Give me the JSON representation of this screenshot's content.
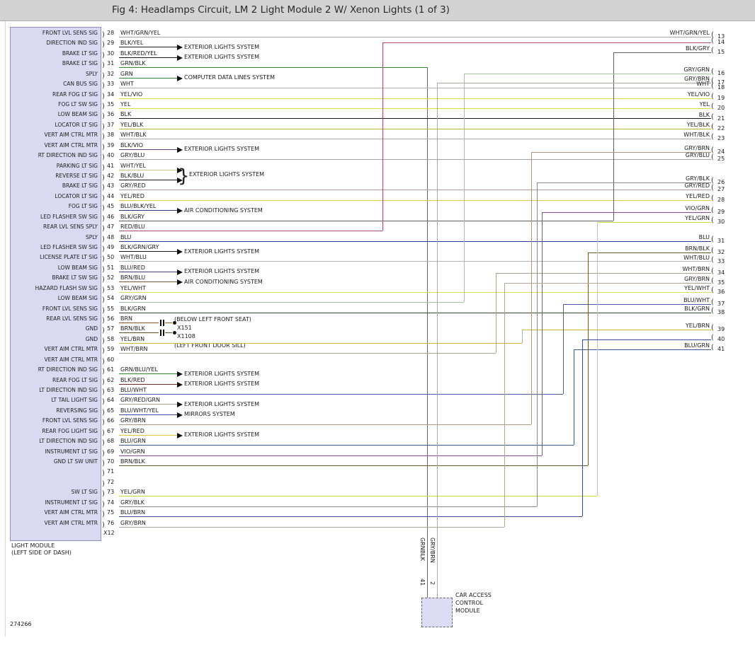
{
  "title": "Fig 4: Headlamps Circuit, LM 2 Light Module 2 W/ Xenon Lights (1 of 3)",
  "doc_number": "274266",
  "left_module": {
    "name_line1": "LIGHT MODULE",
    "name_line2": "(LEFT SIDE OF DASH)",
    "connector_id": "X12",
    "pins": [
      {
        "pin": 28,
        "signal": "FRONT LVL SENS SIG",
        "wire": "WHT/GRN/YEL",
        "color": "#a8a8a8",
        "to": 13
      },
      {
        "pin": 29,
        "signal": "DIRECTION IND SIG",
        "wire": "BLK/YEL",
        "color": "#1a1a1a",
        "system": "EXTERIOR LIGHTS SYSTEM"
      },
      {
        "pin": 30,
        "signal": "BRAKE LT SIG",
        "wire": "BLK/RED/YEL",
        "color": "#1a1a1a",
        "system": "EXTERIOR LIGHTS SYSTEM"
      },
      {
        "pin": 31,
        "signal": "BRAKE LT SIG",
        "wire": "GRN/BLK",
        "color": "#2e8b2e",
        "to_module": true
      },
      {
        "pin": 32,
        "signal": "SPLY",
        "wire": "GRN",
        "color": "#2e8b2e",
        "system": "COMPUTER DATA LINES SYSTEM"
      },
      {
        "pin": 33,
        "signal": "CAN BUS SIG",
        "wire": "WHT",
        "color": "#b0b0b0",
        "to": 18
      },
      {
        "pin": 34,
        "signal": "REAR FOG LT SIG",
        "wire": "YEL/VIO",
        "color": "#ddd83a",
        "to": 19
      },
      {
        "pin": 35,
        "signal": "FOG LT SW SIG",
        "wire": "YEL",
        "color": "#e0e040",
        "to": 20
      },
      {
        "pin": 36,
        "signal": "LOW BEAM SIG",
        "wire": "BLK",
        "color": "#1a1a1a",
        "to": 21
      },
      {
        "pin": 37,
        "signal": "LOCATOR LT SIG",
        "wire": "YEL/BLK",
        "color": "#b8b832",
        "to": 22
      },
      {
        "pin": 38,
        "signal": "VERT AIM CTRL MTR",
        "wire": "WHT/BLK",
        "color": "#a8a8a8",
        "to": 23
      },
      {
        "pin": 39,
        "signal": "VERT AIM CTRL MTR",
        "wire": "BLK/VIO",
        "color": "#6a3a8e",
        "system": "EXTERIOR LIGHTS SYSTEM"
      },
      {
        "pin": 40,
        "signal": "RT DIRECTION IND SIG",
        "wire": "GRY/BLU",
        "color": "#9aa4b4",
        "to": 25
      },
      {
        "pin": 41,
        "signal": "PARKING LT SIG",
        "wire": "WHT/YEL",
        "color": "#c8c882",
        "arrow_only": true
      },
      {
        "pin": 42,
        "signal": "REVERSE LT SIG",
        "wire": "BLK/BLU",
        "color": "#1a1a2e",
        "system": "EXTERIOR LIGHTS SYSTEM",
        "brace": true
      },
      {
        "pin": 43,
        "signal": "BRAKE LT SIG",
        "wire": "GRY/RED",
        "color": "#b09898",
        "to": 27
      },
      {
        "pin": 44,
        "signal": "LOCATOR LT SIG",
        "wire": "YEL/RED",
        "color": "#ddc83a",
        "to": 28
      },
      {
        "pin": 45,
        "signal": "FOG LT SIG",
        "wire": "BLU/BLK/YEL",
        "color": "#2a3a7e",
        "system": "AIR CONDITIONING SYSTEM"
      },
      {
        "pin": 46,
        "signal": "LED FLASHER SW SIG",
        "wire": "BLK/GRY",
        "color": "#606060",
        "to": 15
      },
      {
        "pin": 47,
        "signal": "REAR LVL SENS SPLY",
        "wire": "RED/BLU",
        "color": "#b04a6a",
        "to": 14
      },
      {
        "pin": 48,
        "signal": "SPLY",
        "wire": "BLU",
        "color": "#2a3a9e",
        "to": 31
      },
      {
        "pin": 49,
        "signal": "LED FLASHER SW SIG",
        "wire": "BLK/GRN/GRY",
        "color": "#1a1a1a",
        "system": "EXTERIOR LIGHTS SYSTEM"
      },
      {
        "pin": 50,
        "signal": "LICENSE PLATE LT SIG",
        "wire": "WHT/BLU",
        "color": "#a8b4c4",
        "to": 33
      },
      {
        "pin": 51,
        "signal": "LOW BEAM SIG",
        "wire": "BLU/RED",
        "color": "#4a3a8e",
        "system": "EXTERIOR LIGHTS SYSTEM"
      },
      {
        "pin": 52,
        "signal": "BRAKE LT SW SIG",
        "wire": "BRN/BLU",
        "color": "#8a5a2a",
        "system": "AIR CONDITIONING SYSTEM"
      },
      {
        "pin": 53,
        "signal": "HAZARD FLASH SW SIG",
        "wire": "YEL/WHT",
        "color": "#dcdc6a",
        "to": 36
      },
      {
        "pin": 54,
        "signal": "LOW BEAM SIG",
        "wire": "GRY/GRN",
        "color": "#9ec49e",
        "to": 16
      },
      {
        "pin": 55,
        "signal": "FRONT LVL SENS SIG",
        "wire": "BLK/GRN",
        "color": "#2f4f2f",
        "to": 38
      },
      {
        "pin": 56,
        "signal": "REAR LVL SENS SIG",
        "wire": "BRN",
        "color": "#8a5a2a",
        "stub": true
      },
      {
        "pin": 57,
        "signal": "GND",
        "wire": "BRN/BLK",
        "color": "#6a4a22",
        "stub": true
      },
      {
        "pin": 58,
        "signal": "GND",
        "wire": "YEL/BRN",
        "color": "#c8b83a",
        "to": 39
      },
      {
        "pin": 59,
        "signal": "VERT AIM CTRL MTR",
        "wire": "WHT/BRN",
        "color": "#b0a090",
        "to": 34
      },
      {
        "pin": 60,
        "signal": "VERT AIM CTRL MTR",
        "wire": "",
        "color": ""
      },
      {
        "pin": 61,
        "signal": "RT DIRECTION IND SIG",
        "wire": "GRN/BLU/YEL",
        "color": "#2e8b2e",
        "system": "EXTERIOR LIGHTS SYSTEM"
      },
      {
        "pin": 62,
        "signal": "REAR FOG LT SIG",
        "wire": "BLK/RED",
        "color": "#7a2a2a",
        "system": "EXTERIOR LIGHTS SYSTEM"
      },
      {
        "pin": 63,
        "signal": "LT DIRECTION IND SIG",
        "wire": "BLU/WHT",
        "color": "#4a5aae",
        "to": 37
      },
      {
        "pin": 64,
        "signal": "LT TAIL LIGHT SIG",
        "wire": "GRY/RED/GRN",
        "color": "#ad9a8e",
        "system": "EXTERIOR LIGHTS SYSTEM"
      },
      {
        "pin": 65,
        "signal": "REVERSING SIG",
        "wire": "BLU/WHT/YEL",
        "color": "#3a4aae",
        "system": "MIRRORS SYSTEM"
      },
      {
        "pin": 66,
        "signal": "FRONT LVL SENS SIG",
        "wire": "GRY/BRN",
        "color": "#a89888",
        "to": 24
      },
      {
        "pin": 67,
        "signal": "REAR FOG LIGHT SIG",
        "wire": "YEL/RED",
        "color": "#ddc83a",
        "system": "EXTERIOR LIGHTS SYSTEM"
      },
      {
        "pin": 68,
        "signal": "LT DIRECTION IND SIG",
        "wire": "BLU/GRN",
        "color": "#3a5a9e",
        "to": 41
      },
      {
        "pin": 69,
        "signal": "INSTRUMENT LT SIG",
        "wire": "VIO/GRN",
        "color": "#8a4a9e",
        "to": 29
      },
      {
        "pin": 70,
        "signal": "GND LT SW UNIT",
        "wire": "BRN/BLK",
        "color": "#6a5a2a",
        "to": 32
      },
      {
        "pin": 71,
        "signal": "",
        "wire": "",
        "color": ""
      },
      {
        "pin": 72,
        "signal": "",
        "wire": "",
        "color": ""
      },
      {
        "pin": 73,
        "signal": "SW LT SIG",
        "wire": "YEL/GRN",
        "color": "#ccd83a",
        "to": 30
      },
      {
        "pin": 74,
        "signal": "INSTRUMENT LT SIG",
        "wire": "GRY/BLK",
        "color": "#8a8a8a",
        "to": 26
      },
      {
        "pin": 75,
        "signal": "VERT AIM CTRL MTR",
        "wire": "BLU/BRN",
        "color": "#3a4a9e",
        "to": 40
      },
      {
        "pin": 76,
        "signal": "VERT AIM CTRL MTR",
        "wire": "GRY/BRN",
        "color": "#b0a598",
        "to": 35
      }
    ]
  },
  "right_connector": {
    "pins": [
      {
        "pin": 13,
        "wire": "WHT/GRN/YEL"
      },
      {
        "pin": 14,
        "wire": ""
      },
      {
        "pin": 15,
        "wire": "BLK/GRY"
      },
      {
        "pin": 16,
        "wire": "GRY/GRN"
      },
      {
        "pin": 17,
        "wire": "GRY/BRN",
        "to_module": true
      },
      {
        "pin": 18,
        "wire": "WHT"
      },
      {
        "pin": 19,
        "wire": "YEL/VIO"
      },
      {
        "pin": 20,
        "wire": "YEL"
      },
      {
        "pin": 21,
        "wire": "BLK"
      },
      {
        "pin": 22,
        "wire": "YEL/BLK"
      },
      {
        "pin": 23,
        "wire": "WHT/BLK"
      },
      {
        "pin": 24,
        "wire": "GRY/BRN"
      },
      {
        "pin": 25,
        "wire": "GRY/BLU"
      },
      {
        "pin": 26,
        "wire": "GRY/BLK"
      },
      {
        "pin": 27,
        "wire": "GRY/RED"
      },
      {
        "pin": 28,
        "wire": "YEL/RED"
      },
      {
        "pin": 29,
        "wire": "VIO/GRN"
      },
      {
        "pin": 30,
        "wire": "YEL/GRN"
      },
      {
        "pin": 31,
        "wire": "BLU"
      },
      {
        "pin": 32,
        "wire": "BRN/BLK"
      },
      {
        "pin": 33,
        "wire": "WHT/BLU"
      },
      {
        "pin": 34,
        "wire": "WHT/BRN"
      },
      {
        "pin": 35,
        "wire": "GRY/BRN"
      },
      {
        "pin": 36,
        "wire": "YEL/WHT"
      },
      {
        "pin": 37,
        "wire": "BLU/WHT"
      },
      {
        "pin": 38,
        "wire": "BLK/GRN"
      },
      {
        "pin": 39,
        "wire": "YEL/BRN"
      },
      {
        "pin": 40,
        "wire": ""
      },
      {
        "pin": 41,
        "wire": "BLU/GRN"
      }
    ]
  },
  "ground_points": {
    "note_above": "(BELOW LEFT FRONT SEAT)",
    "connector_1": "X151",
    "connector_2": "X1108",
    "note_below": "(LEFT FRONT DOOR SILL)"
  },
  "bottom_module": {
    "name_lines": [
      "CAR ACCESS",
      "CONTROL",
      "MODULE"
    ],
    "pins": [
      {
        "pin": "41",
        "wire": "GRNBLK"
      },
      {
        "pin": "2",
        "wire": "GRY/BRN"
      }
    ]
  }
}
